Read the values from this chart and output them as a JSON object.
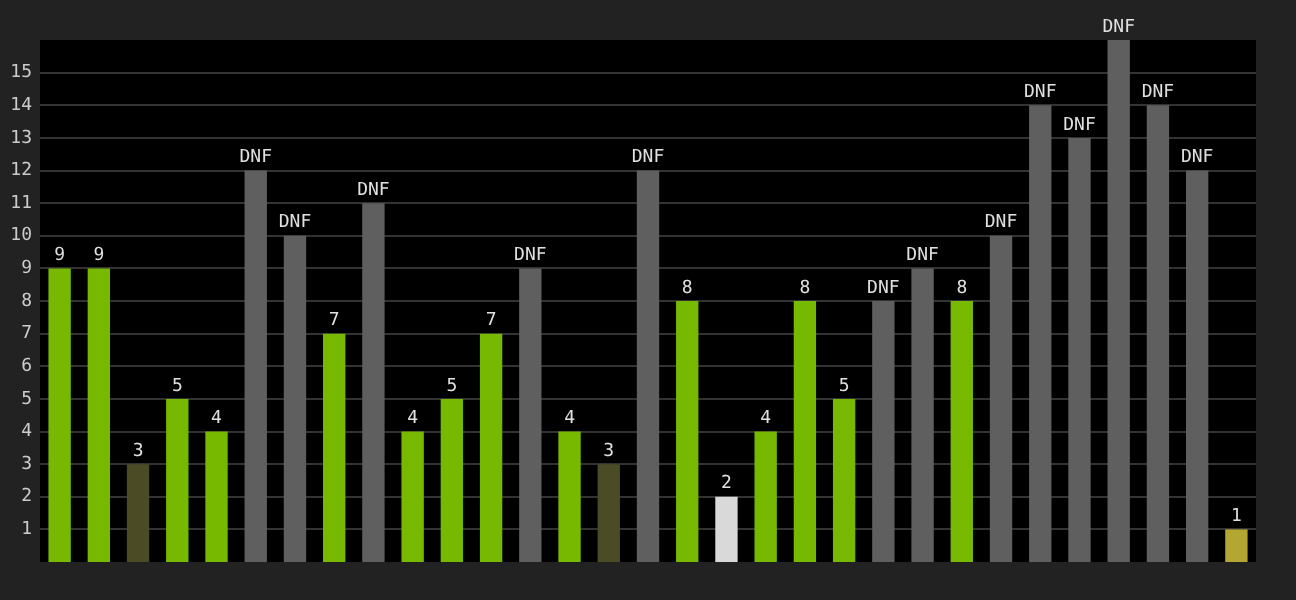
{
  "chart_data": {
    "type": "bar",
    "categories": [
      null,
      null,
      null,
      null,
      null,
      null,
      null,
      null,
      null,
      null,
      null,
      null,
      null,
      null,
      null,
      null,
      null,
      null,
      null,
      null,
      null,
      null,
      null,
      null,
      null,
      null,
      null,
      null,
      null,
      null,
      null
    ],
    "values": [
      9,
      9,
      3,
      5,
      4,
      12,
      10,
      7,
      11,
      4,
      5,
      7,
      9,
      4,
      3,
      12,
      8,
      2,
      4,
      8,
      5,
      8,
      9,
      8,
      10,
      14,
      13,
      16,
      14,
      12,
      1
    ],
    "colors": [
      "#76b900",
      "#76b900",
      "#4b4b26",
      "#76b900",
      "#76b900",
      "#5f5f5f",
      "#5f5f5f",
      "#76b900",
      "#5f5f5f",
      "#76b900",
      "#76b900",
      "#76b900",
      "#5f5f5f",
      "#76b900",
      "#4b4b26",
      "#5f5f5f",
      "#76b900",
      "#d9d9d9",
      "#76b900",
      "#76b900",
      "#76b900",
      "#5f5f5f",
      "#5f5f5f",
      "#76b900",
      "#5f5f5f",
      "#5f5f5f",
      "#5f5f5f",
      "#5f5f5f",
      "#5f5f5f",
      "#5f5f5f",
      "#b3a633"
    ],
    "value_labels": [
      "9",
      "9",
      "3",
      "5",
      "4",
      "DNF",
      "DNF",
      "7",
      "DNF",
      "4",
      "5",
      "7",
      "DNF",
      "4",
      "3",
      "DNF",
      "8",
      "2",
      "4",
      "8",
      "5",
      "DNF",
      "DNF",
      "8",
      "DNF",
      "DNF",
      "DNF",
      "DNF",
      "DNF",
      "DNF",
      "1"
    ],
    "ylim": [
      0,
      16
    ],
    "yticks": [
      1,
      2,
      3,
      4,
      5,
      6,
      7,
      8,
      9,
      10,
      11,
      12,
      13,
      14,
      15
    ],
    "grid": "y",
    "tick_labels": "y"
  }
}
